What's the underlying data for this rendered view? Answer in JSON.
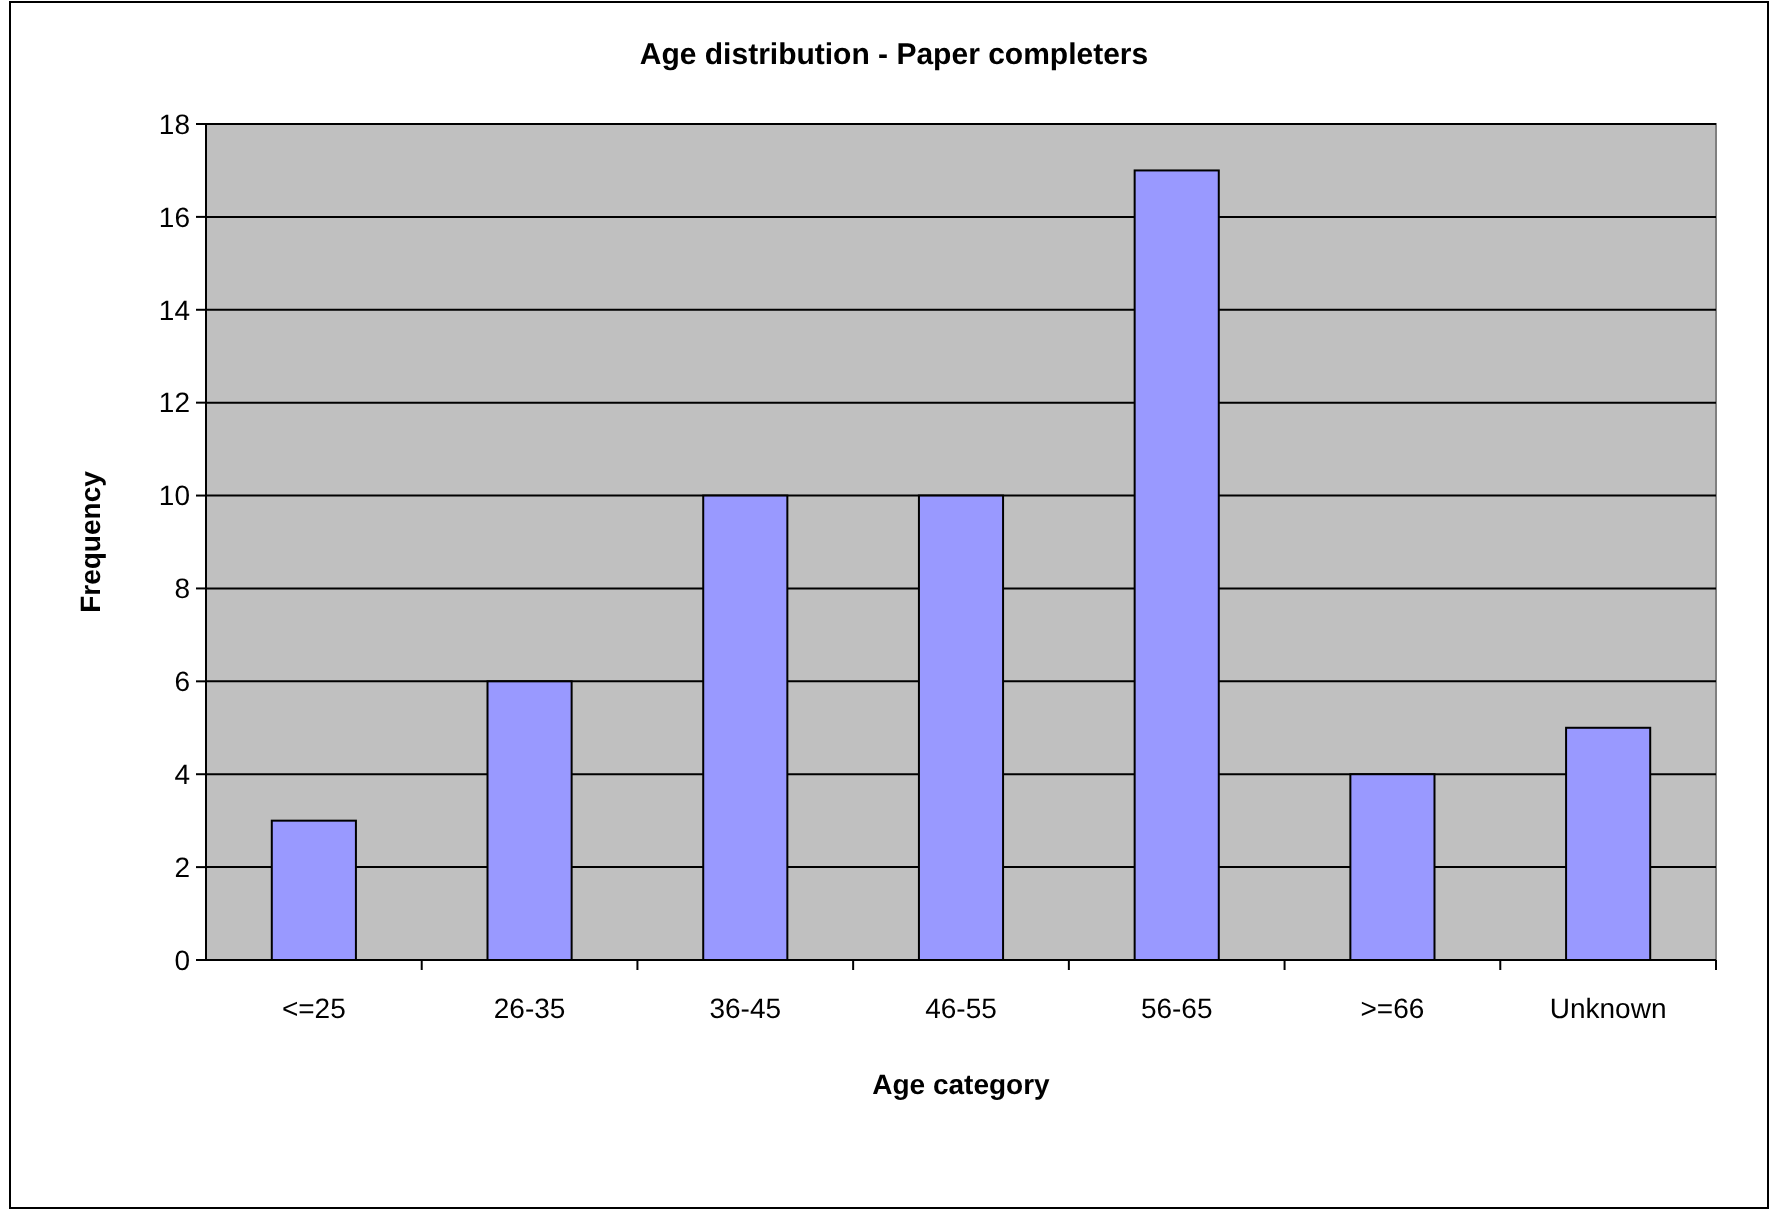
{
  "chart_data": {
    "type": "bar",
    "title": "Age distribution - Paper completers",
    "xlabel": "Age category",
    "ylabel": "Frequency",
    "categories": [
      "<=25",
      "26-35",
      "36-45",
      "46-55",
      "56-65",
      ">=66",
      "Unknown"
    ],
    "values": [
      3,
      6,
      10,
      10,
      17,
      4,
      5
    ],
    "color": "#9999ff",
    "ylim": [
      0,
      18
    ],
    "yticks": [
      0,
      2,
      4,
      6,
      8,
      10,
      12,
      14,
      16,
      18
    ],
    "grid": "y"
  }
}
